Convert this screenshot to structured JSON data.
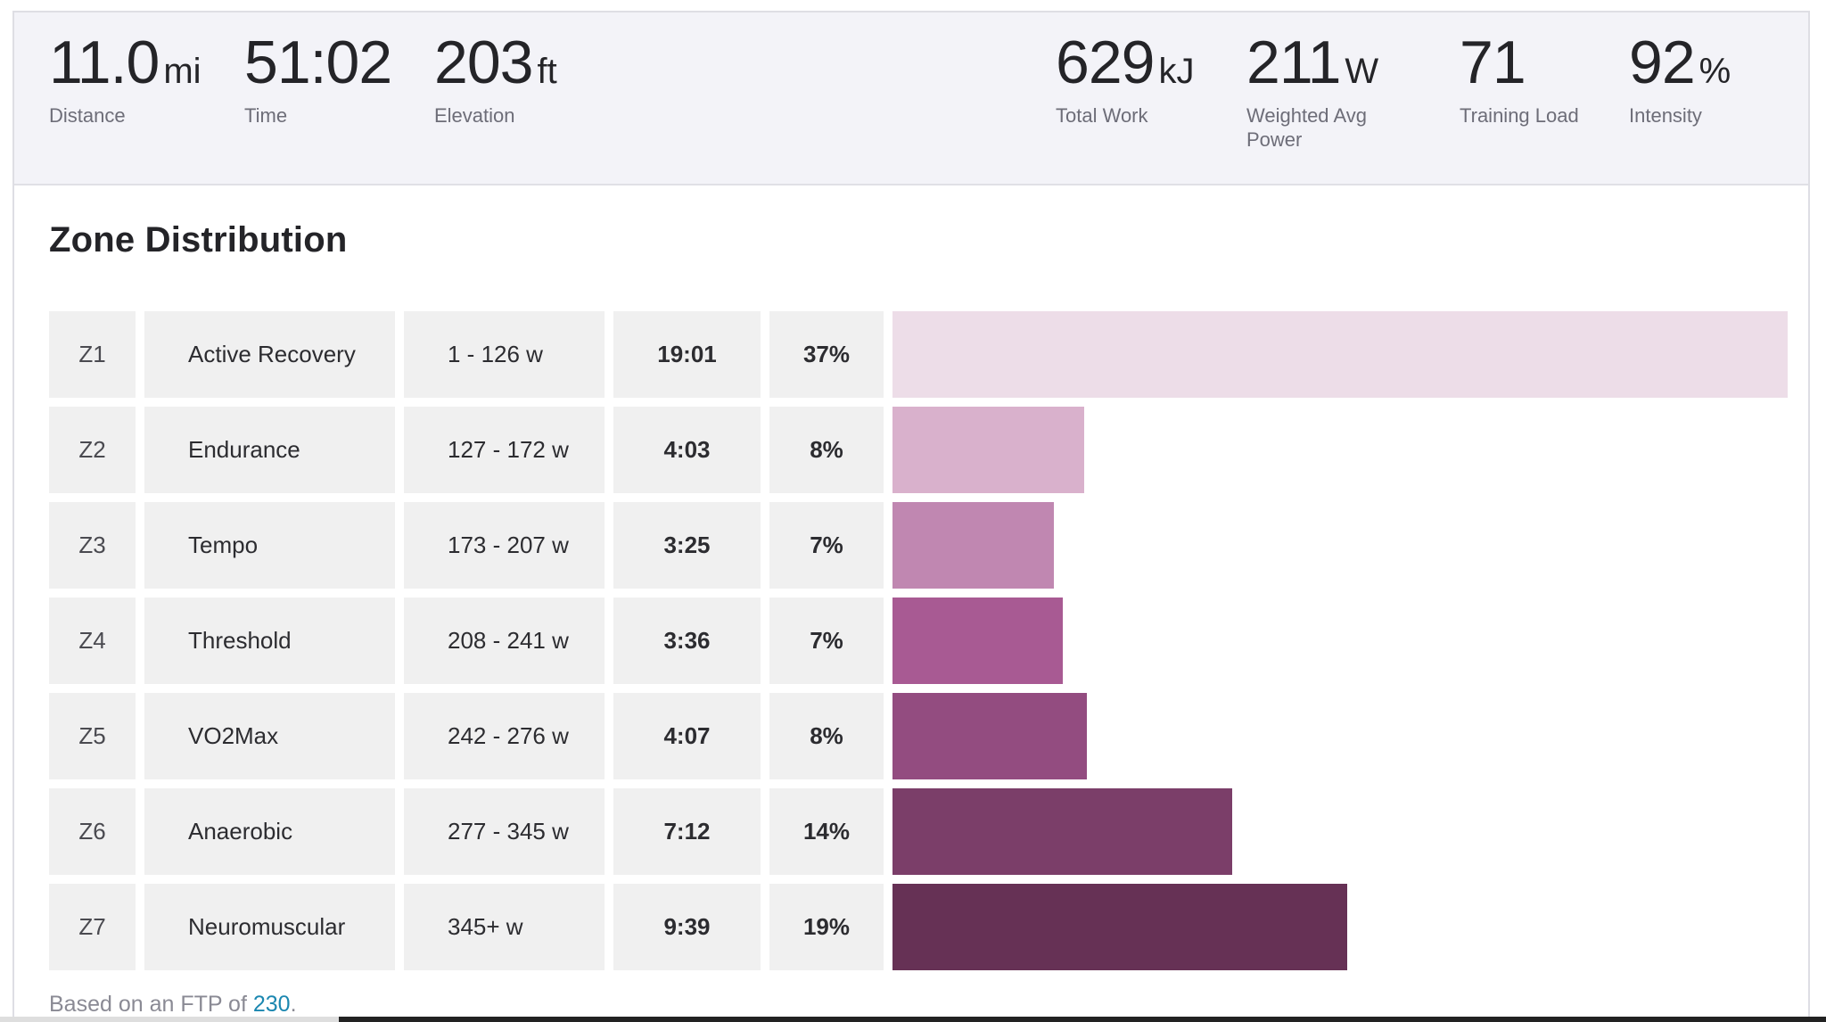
{
  "stats_left": [
    {
      "value": "11.0",
      "unit": "mi",
      "label": "Distance"
    },
    {
      "value": "51:02",
      "unit": "",
      "label": "Time"
    },
    {
      "value": "203",
      "unit": "ft",
      "label": "Elevation"
    }
  ],
  "stats_right": [
    {
      "value": "629",
      "unit": "kJ",
      "label": "Total Work"
    },
    {
      "value": "211",
      "unit": "W",
      "label": "Weighted Avg\nPower"
    },
    {
      "value": "71",
      "unit": "",
      "label": "Training Load"
    },
    {
      "value": "92",
      "unit": "%",
      "label": "Intensity"
    }
  ],
  "zone_distribution": {
    "title": "Zone Distribution",
    "zones": [
      {
        "id": "Z1",
        "name": "Active Recovery",
        "range": "1 - 126 w",
        "time": "19:01",
        "percent": "37%",
        "bar_fraction": 1.0,
        "color": "#eddde8"
      },
      {
        "id": "Z2",
        "name": "Endurance",
        "range": "127 - 172 w",
        "time": "4:03",
        "percent": "8%",
        "bar_fraction": 0.214,
        "color": "#d9b1cc"
      },
      {
        "id": "Z3",
        "name": "Tempo",
        "range": "173 - 207 w",
        "time": "3:25",
        "percent": "7%",
        "bar_fraction": 0.18,
        "color": "#c087b1"
      },
      {
        "id": "Z4",
        "name": "Threshold",
        "range": "208 - 241 w",
        "time": "3:36",
        "percent": "7%",
        "bar_fraction": 0.19,
        "color": "#a85a93"
      },
      {
        "id": "Z5",
        "name": "VO2Max",
        "range": "242 - 276 w",
        "time": "4:07",
        "percent": "8%",
        "bar_fraction": 0.217,
        "color": "#934c80"
      },
      {
        "id": "Z6",
        "name": "Anaerobic",
        "range": "277 - 345 w",
        "time": "7:12",
        "percent": "14%",
        "bar_fraction": 0.379,
        "color": "#7b3e69"
      },
      {
        "id": "Z7",
        "name": "Neuromuscular",
        "range": "345+ w",
        "time": "9:39",
        "percent": "19%",
        "bar_fraction": 0.508,
        "color": "#663155"
      }
    ],
    "ftp_prefix": "Based on an FTP of ",
    "ftp_value": "230",
    "ftp_suffix": "."
  }
}
